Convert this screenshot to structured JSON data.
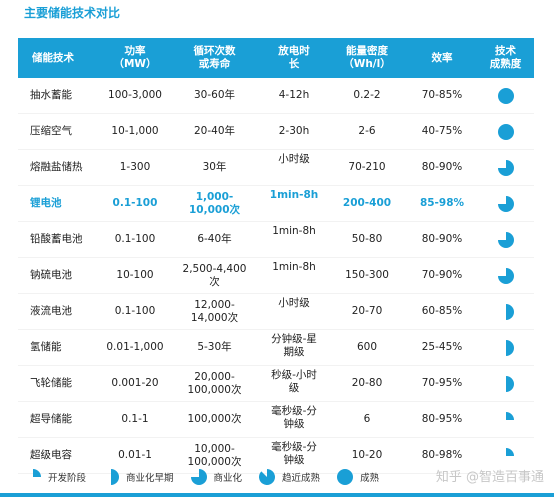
{
  "title": "主要储能技术对比",
  "headers": {
    "tech": "储能技术",
    "power_l1": "功率",
    "power_l2": "（MW）",
    "cycle_l1": "循环次数",
    "cycle_l2": "或寿命",
    "duration_l1": "放电时",
    "duration_l2": "长",
    "density_l1": "能量密度",
    "density_l2": "（Wh/l）",
    "efficiency": "效率",
    "maturity_l1": "技术",
    "maturity_l2": "成熟度"
  },
  "rows": [
    {
      "tech": "抽水蓄能",
      "power": "100-3,000",
      "cycle": "30-60年",
      "duration": "4-12h",
      "density": "0.2-2",
      "efficiency": "70-85%",
      "maturity": 1.0
    },
    {
      "tech": "压缩空气",
      "power": "10-1,000",
      "cycle": "20-40年",
      "duration": "2-30h",
      "density": "2-6",
      "efficiency": "40-75%",
      "maturity": 1.0
    },
    {
      "tech": "熔融盐储热",
      "power": "1-300",
      "cycle": "30年",
      "duration": "小时级",
      "density": "70-210",
      "efficiency": "80-90%",
      "maturity": 0.75
    },
    {
      "tech": "锂电池",
      "power": "0.1-100",
      "cycle": "1,000-10,000次",
      "duration": "1min-8h",
      "density": "200-400",
      "efficiency": "85-98%",
      "maturity": 0.75
    },
    {
      "tech": "铅酸蓄电池",
      "power": "0.1-100",
      "cycle": "6-40年",
      "duration": "1min-8h",
      "density": "50-80",
      "efficiency": "80-90%",
      "maturity": 0.75
    },
    {
      "tech": "钠硫电池",
      "power": "10-100",
      "cycle": "2,500-4,400次",
      "duration": "1min-8h",
      "density": "150-300",
      "efficiency": "70-90%",
      "maturity": 0.75
    },
    {
      "tech": "液流电池",
      "power": "0.1-100",
      "cycle": "12,000-14,000次",
      "duration": "小时级",
      "density": "20-70",
      "efficiency": "60-85%",
      "maturity": 0.5
    },
    {
      "tech": "氢储能",
      "power": "0.01-1,000",
      "cycle": "5-30年",
      "duration": "分钟级-星期级",
      "density": "600",
      "efficiency": "25-45%",
      "maturity": 0.5
    },
    {
      "tech": "飞轮储能",
      "power": "0.001-20",
      "cycle": "20,000-100,000次",
      "duration": "秒级-小时级",
      "density": "20-80",
      "efficiency": "70-95%",
      "maturity": 0.5
    },
    {
      "tech": "超导储能",
      "power": "0.1-1",
      "cycle": "100,000次",
      "duration": "毫秒级-分钟级",
      "density": "6",
      "efficiency": "80-95%",
      "maturity": 0.25
    },
    {
      "tech": "超级电容",
      "power": "0.01-1",
      "cycle": "10,000-100,000次",
      "duration": "毫秒级-分钟级",
      "density": "10-20",
      "efficiency": "80-98%",
      "maturity": 0.25
    }
  ],
  "legend": [
    {
      "label": "开发阶段",
      "level": 0.25
    },
    {
      "label": "商业化早期",
      "level": 0.5
    },
    {
      "label": "商业化",
      "level": 0.75
    },
    {
      "label": "趋近成熟",
      "level": 0.875
    },
    {
      "label": "成熟",
      "level": 1.0
    }
  ],
  "watermark": "知乎 @智造百事通",
  "colors": {
    "accent": "#1a9fd6",
    "highlight_row": "锂电池"
  }
}
